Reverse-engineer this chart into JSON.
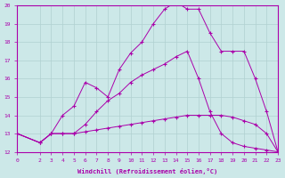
{
  "xlabel": "Windchill (Refroidissement éolien,°C)",
  "xlim": [
    0,
    23
  ],
  "ylim": [
    12,
    20
  ],
  "xticks": [
    0,
    2,
    3,
    4,
    5,
    6,
    7,
    8,
    9,
    10,
    11,
    12,
    13,
    14,
    15,
    16,
    17,
    18,
    19,
    20,
    21,
    22,
    23
  ],
  "yticks": [
    12,
    13,
    14,
    15,
    16,
    17,
    18,
    19,
    20
  ],
  "line_color": "#aa00aa",
  "bg_color": "#cce8e8",
  "line1_x": [
    0,
    2,
    3,
    4,
    5,
    6,
    7,
    8,
    9,
    10,
    11,
    12,
    13,
    14,
    15,
    16,
    17,
    18,
    19,
    20,
    21,
    22,
    23
  ],
  "line1_y": [
    13.0,
    12.5,
    13.0,
    13.0,
    13.0,
    13.1,
    13.2,
    13.3,
    13.4,
    13.5,
    13.6,
    13.7,
    13.8,
    13.9,
    14.0,
    14.0,
    14.0,
    14.0,
    13.9,
    13.7,
    13.5,
    13.0,
    12.0
  ],
  "line2_x": [
    0,
    2,
    3,
    4,
    5,
    6,
    7,
    8,
    9,
    10,
    11,
    12,
    13,
    14,
    15,
    16,
    17,
    18,
    19,
    20,
    21,
    22,
    23
  ],
  "line2_y": [
    13.0,
    12.5,
    13.0,
    13.0,
    13.0,
    13.5,
    14.2,
    14.8,
    15.2,
    15.8,
    16.2,
    16.5,
    16.8,
    17.2,
    17.5,
    16.0,
    14.2,
    13.0,
    12.5,
    12.3,
    12.2,
    12.1,
    12.0
  ],
  "line3_x": [
    0,
    2,
    3,
    4,
    5,
    6,
    7,
    8,
    9,
    10,
    11,
    12,
    13,
    14,
    15,
    16,
    17,
    18,
    19,
    20,
    21,
    22,
    23
  ],
  "line3_y": [
    13.0,
    12.5,
    13.0,
    14.0,
    14.5,
    15.8,
    15.5,
    15.0,
    16.5,
    17.4,
    18.0,
    19.0,
    19.8,
    20.2,
    19.8,
    19.8,
    18.5,
    17.5,
    17.5,
    17.5,
    16.0,
    14.2,
    12.0
  ]
}
